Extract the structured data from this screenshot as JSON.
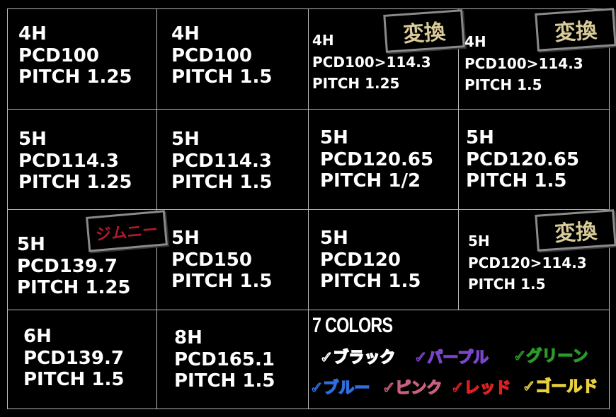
{
  "specs": [
    {
      "lines": [
        "4H",
        "PCD100",
        "PITCH 1.25"
      ]
    },
    {
      "lines": [
        "4H",
        "PCD100",
        "PITCH 1.5"
      ]
    },
    {
      "lines": [
        "4H",
        "PCD100>114.3",
        "PITCH 1.25"
      ],
      "badge": "変換"
    },
    {
      "lines": [
        "4H",
        "PCD100>114.3",
        "PITCH 1.5"
      ],
      "badge": "変換"
    },
    {
      "lines": [
        "5H",
        "PCD114.3",
        "PITCH 1.25"
      ]
    },
    {
      "lines": [
        "5H",
        "PCD114.3",
        "PITCH 1.5"
      ]
    },
    {
      "lines": [
        "5H",
        "PCD120.65",
        "PITCH 1/2"
      ]
    },
    {
      "lines": [
        "5H",
        "PCD120.65",
        "PITCH 1.5"
      ]
    },
    {
      "lines": [
        "5H",
        "PCD139.7",
        "PITCH 1.25"
      ],
      "badge": "ジムニー"
    },
    {
      "lines": [
        "5H",
        "PCD150",
        "PITCH 1.5"
      ]
    },
    {
      "lines": [
        "5H",
        "PCD120",
        "PITCH 1.5"
      ]
    },
    {
      "lines": [
        "5H",
        "PCD120>114.3",
        "PITCH 1.5"
      ],
      "badge": "変換"
    },
    {
      "lines": [
        "6H",
        "PCD139.7",
        "PITCH 1.5"
      ]
    },
    {
      "lines": [
        "8H",
        "PCD165.1",
        "PITCH 1.5"
      ]
    }
  ],
  "colors": {
    "title": "7 COLORS",
    "items": [
      {
        "label": "✓ブラック",
        "color": "#ffffff"
      },
      {
        "label": "✓パープル",
        "color": "#7b45c8"
      },
      {
        "label": "✓グリーン",
        "color": "#2a9a2a"
      },
      {
        "label": "✓ブルー",
        "color": "#2f6ee0"
      },
      {
        "label": "✓ピンク",
        "color": "#c8607e"
      },
      {
        "label": "✓レッド",
        "color": "#e02020"
      },
      {
        "label": "✓ゴールド",
        "color": "#e8d040"
      }
    ]
  }
}
